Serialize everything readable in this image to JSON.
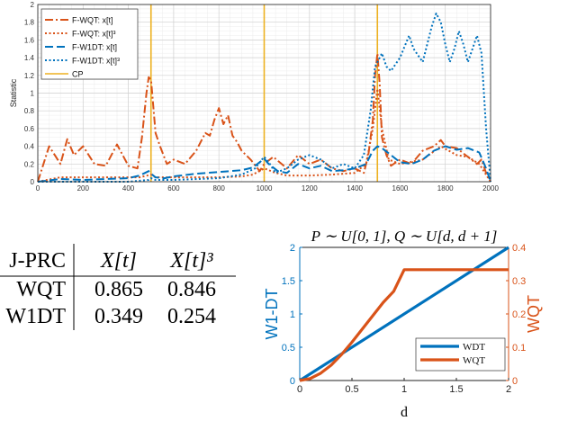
{
  "chart_data": [
    {
      "type": "line",
      "ylabel": "Statistic",
      "xlim": [
        0,
        2000
      ],
      "ylim": [
        0,
        2
      ],
      "xticks": [
        0,
        200,
        400,
        600,
        800,
        1000,
        1200,
        1400,
        1600,
        1800,
        2000
      ],
      "yticks": [
        0,
        0.2,
        0.4,
        0.6,
        0.8,
        1,
        1.2,
        1.4,
        1.6,
        1.8,
        2
      ],
      "ytick_labels": [
        "0",
        "0.2",
        "0.4",
        "0.6",
        "0.8",
        "1",
        "1.2",
        "1.4",
        "1.6",
        "1.8",
        "2"
      ],
      "grid": true,
      "legend_position": "top-left",
      "cp_positions": [
        500,
        1000,
        1500
      ],
      "series": [
        {
          "name": "F-WQT:  x[t]",
          "color": "#D95319",
          "dash": "dashdot",
          "width": 2,
          "x": [
            0,
            50,
            100,
            130,
            160,
            200,
            250,
            300,
            350,
            400,
            440,
            460,
            470,
            480,
            490,
            500,
            510,
            520,
            540,
            570,
            600,
            650,
            700,
            740,
            760,
            780,
            800,
            820,
            840,
            860,
            880,
            900,
            940,
            980,
            1000,
            1040,
            1100,
            1150,
            1200,
            1250,
            1300,
            1350,
            1400,
            1440,
            1460,
            1480,
            1490,
            1500,
            1510,
            1520,
            1540,
            1560,
            1600,
            1650,
            1700,
            1750,
            1780,
            1800,
            1850,
            1900,
            1940,
            1960,
            1980,
            2000
          ],
          "y": [
            0,
            0.4,
            0.2,
            0.48,
            0.3,
            0.4,
            0.2,
            0.18,
            0.42,
            0.18,
            0.15,
            0.5,
            0.75,
            1.0,
            1.18,
            1.15,
            0.85,
            0.55,
            0.4,
            0.2,
            0.25,
            0.2,
            0.35,
            0.55,
            0.52,
            0.7,
            0.83,
            0.65,
            0.75,
            0.52,
            0.45,
            0.35,
            0.25,
            0.12,
            0.2,
            0.28,
            0.15,
            0.3,
            0.2,
            0.25,
            0.15,
            0.12,
            0.15,
            0.1,
            0.3,
            0.7,
            1.2,
            1.45,
            1.1,
            0.5,
            0.3,
            0.18,
            0.25,
            0.2,
            0.35,
            0.4,
            0.47,
            0.4,
            0.38,
            0.28,
            0.2,
            0.25,
            0.1,
            0
          ]
        },
        {
          "name": "F-WQT:  x[t]³",
          "color": "#D95319",
          "dash": "dot",
          "width": 2,
          "x": [
            0,
            100,
            300,
            450,
            500,
            520,
            600,
            700,
            800,
            900,
            950,
            1000,
            1050,
            1100,
            1200,
            1300,
            1400,
            1450,
            1480,
            1500,
            1520,
            1550,
            1600,
            1700,
            1780,
            1850,
            1900,
            1950,
            2000
          ],
          "y": [
            0,
            0.05,
            0.05,
            0.05,
            0.08,
            0.05,
            0.05,
            0.05,
            0.05,
            0.06,
            0.08,
            0.15,
            0.1,
            0.07,
            0.07,
            0.08,
            0.1,
            0.2,
            0.6,
            1.05,
            0.6,
            0.25,
            0.2,
            0.25,
            0.4,
            0.3,
            0.28,
            0.2,
            0
          ]
        },
        {
          "name": "F-W1DT: x[t]",
          "color": "#0072BD",
          "dash": "dash",
          "width": 2,
          "x": [
            0,
            100,
            200,
            300,
            400,
            450,
            490,
            500,
            520,
            560,
            600,
            700,
            800,
            900,
            950,
            980,
            1000,
            1020,
            1060,
            1100,
            1150,
            1200,
            1250,
            1300,
            1350,
            1400,
            1450,
            1480,
            1500,
            1520,
            1560,
            1600,
            1650,
            1700,
            1750,
            1800,
            1850,
            1900,
            1950,
            1980,
            2000
          ],
          "y": [
            0,
            0.03,
            0.02,
            0.03,
            0.04,
            0.07,
            0.12,
            0.09,
            0.05,
            0.04,
            0.06,
            0.09,
            0.11,
            0.13,
            0.16,
            0.22,
            0.26,
            0.2,
            0.12,
            0.1,
            0.2,
            0.15,
            0.18,
            0.12,
            0.13,
            0.15,
            0.2,
            0.35,
            0.4,
            0.38,
            0.3,
            0.22,
            0.2,
            0.25,
            0.35,
            0.4,
            0.36,
            0.38,
            0.33,
            0.15,
            0
          ]
        },
        {
          "name": "F-W1DT: x[t]³",
          "color": "#0072BD",
          "dash": "dot",
          "width": 2,
          "x": [
            0,
            200,
            400,
            490,
            500,
            520,
            600,
            800,
            900,
            960,
            990,
            1000,
            1020,
            1050,
            1100,
            1150,
            1200,
            1250,
            1300,
            1350,
            1400,
            1440,
            1470,
            1490,
            1500,
            1520,
            1540,
            1560,
            1600,
            1640,
            1660,
            1700,
            1740,
            1760,
            1780,
            1800,
            1820,
            1840,
            1860,
            1880,
            1900,
            1920,
            1940,
            1960,
            1980,
            2000
          ],
          "y": [
            0,
            0,
            0,
            0.02,
            0.04,
            0.02,
            0.02,
            0.04,
            0.08,
            0.15,
            0.25,
            0.28,
            0.22,
            0.1,
            0.15,
            0.25,
            0.3,
            0.25,
            0.15,
            0.2,
            0.15,
            0.3,
            0.8,
            1.3,
            1.35,
            1.45,
            1.3,
            1.25,
            1.4,
            1.65,
            1.5,
            1.35,
            1.75,
            1.9,
            1.8,
            1.55,
            1.35,
            1.5,
            1.7,
            1.55,
            1.35,
            1.5,
            1.65,
            1.45,
            0.6,
            0
          ]
        },
        {
          "name": "CP",
          "color": "#EDB120",
          "dash": "solid",
          "width": 1.5,
          "x": [],
          "y": []
        }
      ]
    },
    {
      "type": "table",
      "columns": [
        "J-PRC",
        "X[t]",
        "X[t]³"
      ],
      "rows": [
        [
          "WQT",
          "0.865",
          "0.846"
        ],
        [
          "W1DT",
          "0.349",
          "0.254"
        ]
      ]
    },
    {
      "type": "line",
      "title": "P ∼ U[0, 1], Q ∼ U[d, d + 1]",
      "xlabel": "d",
      "ylabel_left": "W1-DT",
      "ylabel_right": "WQT",
      "xlim": [
        0,
        2
      ],
      "ylim_left": [
        0,
        2
      ],
      "ylim_right": [
        0,
        0.4
      ],
      "xticks": [
        0,
        0.5,
        1,
        1.5,
        2
      ],
      "xtick_labels": [
        "0",
        "0.5",
        "1",
        "1.5",
        "2"
      ],
      "yticks_left": [
        0,
        0.5,
        1,
        1.5,
        2
      ],
      "ytick_labels_left": [
        "0",
        "0.5",
        "1",
        "1.5",
        "2"
      ],
      "yticks_right": [
        0,
        0.1,
        0.2,
        0.3,
        0.4
      ],
      "ytick_labels_right": [
        "0",
        "0.1",
        "0.2",
        "0.3",
        "0.4"
      ],
      "grid": false,
      "legend_position": "bottom-right",
      "series": [
        {
          "name": "WDT",
          "color": "#0072BD",
          "axis": "left",
          "x": [
            0,
            2
          ],
          "y": [
            0,
            2
          ]
        },
        {
          "name": "WQT",
          "color": "#D95319",
          "axis": "right",
          "x": [
            0,
            0.1,
            0.2,
            0.3,
            0.4,
            0.5,
            0.6,
            0.7,
            0.8,
            0.9,
            1.0,
            1.5,
            2.0
          ],
          "y": [
            0,
            0.006,
            0.022,
            0.046,
            0.078,
            0.115,
            0.155,
            0.195,
            0.235,
            0.268,
            0.333,
            0.333,
            0.333
          ]
        }
      ]
    }
  ]
}
